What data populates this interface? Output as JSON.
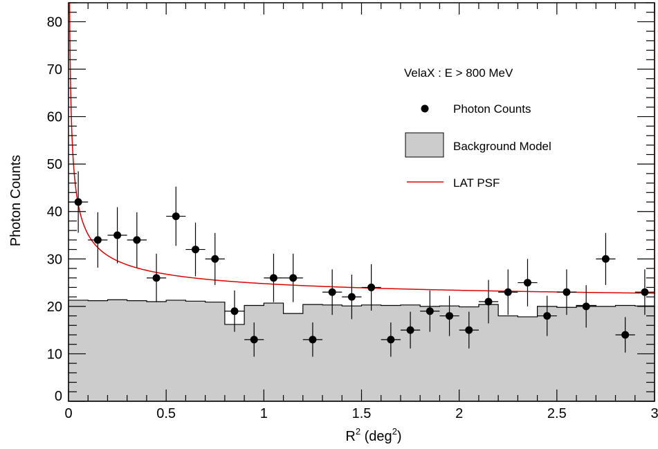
{
  "chart_data": {
    "type": "scatter",
    "title": "",
    "xlabel": "R",
    "xlabel_sup1": "2",
    "xlabel_mid": " (deg",
    "xlabel_sup2": "2",
    "xlabel_end": ")",
    "ylabel": "Photon Counts",
    "xlim": [
      0,
      3
    ],
    "ylim": [
      0,
      84
    ],
    "x_ticks": [
      "0",
      "0.5",
      "1",
      "1.5",
      "2",
      "2.5",
      "3"
    ],
    "y_ticks": [
      "0",
      "10",
      "20",
      "30",
      "40",
      "50",
      "60",
      "70",
      "80"
    ],
    "legend": {
      "placement": "top-right",
      "header": "VelaX : E > 800 MeV",
      "entries": [
        "Photon Counts",
        "Background Model",
        "LAT PSF"
      ]
    },
    "colors": {
      "points": "#000000",
      "background_fill": "#cccccc",
      "psf_line": "#dd0000"
    },
    "series": [
      {
        "name": "Photon Counts",
        "x": [
          0.05,
          0.15,
          0.25,
          0.35,
          0.45,
          0.55,
          0.65,
          0.75,
          0.85,
          0.95,
          1.05,
          1.15,
          1.25,
          1.35,
          1.45,
          1.55,
          1.65,
          1.75,
          1.85,
          1.95,
          2.05,
          2.15,
          2.25,
          2.35,
          2.45,
          2.55,
          2.65,
          2.75,
          2.85,
          2.95
        ],
        "y": [
          42,
          34,
          35,
          34,
          26,
          39,
          32,
          30,
          19,
          13,
          26,
          26,
          13,
          23,
          22,
          24,
          13,
          15,
          19,
          18,
          15,
          21,
          23,
          25,
          18,
          23,
          20,
          30,
          14,
          23
        ],
        "x_err": 0.05
      },
      {
        "name": "Background Model",
        "bin_edges": [
          0,
          0.1,
          0.2,
          0.3,
          0.4,
          0.5,
          0.6,
          0.7,
          0.8,
          0.9,
          1.0,
          1.1,
          1.2,
          1.3,
          1.4,
          1.5,
          1.6,
          1.7,
          1.8,
          1.9,
          2.0,
          2.1,
          2.2,
          2.3,
          2.4,
          2.5,
          2.6,
          2.7,
          2.8,
          2.9,
          3.0
        ],
        "values": [
          21.3,
          21.2,
          21.4,
          21.2,
          21.0,
          21.3,
          21.1,
          20.9,
          16.2,
          20.2,
          20.7,
          18.5,
          20.4,
          20.3,
          20.1,
          20.3,
          20.2,
          20.3,
          20.0,
          20.1,
          19.9,
          20.4,
          18.0,
          17.8,
          20.0,
          19.8,
          20.2,
          20.0,
          20.2,
          20.1
        ]
      },
      {
        "name": "LAT PSF",
        "model": "20 + 4.8 / sqrt(x)"
      }
    ]
  }
}
